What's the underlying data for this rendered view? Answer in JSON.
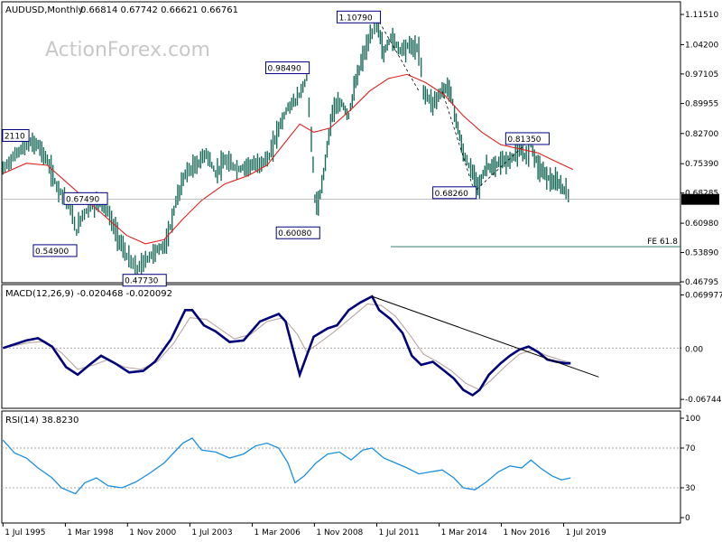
{
  "watermark": "ActionForex.com",
  "chart_data": [
    {
      "type": "ohlc",
      "title": "AUDUSD,Monthly",
      "ohlc_readout": "0.66814 0.67742 0.66621 0.66761",
      "y_ticks": [
        "1.11510",
        "1.04200",
        "0.97105",
        "0.89955",
        "0.82700",
        "0.75390",
        "0.68285",
        "0.60980",
        "0.53890",
        "0.46795"
      ],
      "ylim": [
        0.46795,
        1.1151
      ],
      "last_price": "0.66761",
      "price_path": [
        [
          1995.5,
          0.74
        ],
        [
          1996.1,
          0.78
        ],
        [
          1996.6,
          0.805
        ],
        [
          1997.0,
          0.8
        ],
        [
          1997.4,
          0.76
        ],
        [
          1997.8,
          0.7
        ],
        [
          1998.3,
          0.66
        ],
        [
          1998.65,
          0.59
        ],
        [
          1998.9,
          0.63
        ],
        [
          1999.5,
          0.66
        ],
        [
          1999.9,
          0.65
        ],
        [
          2000.4,
          0.58
        ],
        [
          2000.8,
          0.53
        ],
        [
          2001.25,
          0.497
        ],
        [
          2001.6,
          0.52
        ],
        [
          2002.1,
          0.545
        ],
        [
          2002.5,
          0.56
        ],
        [
          2002.9,
          0.66
        ],
        [
          2003.3,
          0.73
        ],
        [
          2003.8,
          0.75
        ],
        [
          2004.2,
          0.78
        ],
        [
          2004.6,
          0.73
        ],
        [
          2005.0,
          0.76
        ],
        [
          2005.6,
          0.74
        ],
        [
          2006.0,
          0.75
        ],
        [
          2006.4,
          0.75
        ],
        [
          2006.9,
          0.77
        ],
        [
          2007.3,
          0.84
        ],
        [
          2007.7,
          0.89
        ],
        [
          2008.1,
          0.91
        ],
        [
          2008.5,
          0.96
        ],
        [
          2008.7,
          0.82
        ],
        [
          2008.85,
          0.67
        ],
        [
          2009.0,
          0.65
        ],
        [
          2009.3,
          0.76
        ],
        [
          2009.6,
          0.88
        ],
        [
          2010.0,
          0.9
        ],
        [
          2010.3,
          0.87
        ],
        [
          2010.6,
          0.95
        ],
        [
          2010.9,
          1.01
        ],
        [
          2011.3,
          1.07
        ],
        [
          2011.5,
          1.1
        ],
        [
          2011.8,
          1.02
        ],
        [
          2012.1,
          1.06
        ],
        [
          2012.5,
          1.03
        ],
        [
          2012.9,
          1.04
        ],
        [
          2013.3,
          1.03
        ],
        [
          2013.5,
          0.93
        ],
        [
          2013.9,
          0.9
        ],
        [
          2014.3,
          0.93
        ],
        [
          2014.6,
          0.94
        ],
        [
          2014.9,
          0.86
        ],
        [
          2015.2,
          0.78
        ],
        [
          2015.6,
          0.73
        ],
        [
          2015.9,
          0.7
        ],
        [
          2016.2,
          0.75
        ],
        [
          2016.5,
          0.74
        ],
        [
          2016.8,
          0.76
        ],
        [
          2017.2,
          0.76
        ],
        [
          2017.6,
          0.79
        ],
        [
          2017.9,
          0.77
        ],
        [
          2018.1,
          0.8
        ],
        [
          2018.4,
          0.75
        ],
        [
          2018.7,
          0.73
        ],
        [
          2019.0,
          0.71
        ],
        [
          2019.3,
          0.705
        ],
        [
          2019.6,
          0.685
        ],
        [
          2019.8,
          0.675
        ]
      ],
      "moving_average": [
        [
          1995.5,
          0.73
        ],
        [
          1996.5,
          0.755
        ],
        [
          1997.4,
          0.75
        ],
        [
          1998.2,
          0.71
        ],
        [
          1999.0,
          0.67
        ],
        [
          2000.0,
          0.62
        ],
        [
          2000.8,
          0.58
        ],
        [
          2001.6,
          0.56
        ],
        [
          2002.4,
          0.57
        ],
        [
          2003.2,
          0.62
        ],
        [
          2004.0,
          0.665
        ],
        [
          2005.0,
          0.705
        ],
        [
          2006.0,
          0.725
        ],
        [
          2006.8,
          0.75
        ],
        [
          2007.5,
          0.8
        ],
        [
          2008.2,
          0.85
        ],
        [
          2008.8,
          0.83
        ],
        [
          2009.5,
          0.84
        ],
        [
          2010.4,
          0.885
        ],
        [
          2011.2,
          0.93
        ],
        [
          2012.0,
          0.96
        ],
        [
          2012.8,
          0.97
        ],
        [
          2013.6,
          0.95
        ],
        [
          2014.4,
          0.92
        ],
        [
          2015.2,
          0.87
        ],
        [
          2016.0,
          0.83
        ],
        [
          2016.8,
          0.8
        ],
        [
          2017.6,
          0.79
        ],
        [
          2018.4,
          0.78
        ],
        [
          2019.2,
          0.758
        ],
        [
          2019.9,
          0.74
        ]
      ],
      "level_labels": [
        {
          "text": "1.10790",
          "x": 2011.5,
          "y": 1.1079
        },
        {
          "text": "0.98490",
          "x": 2008.45,
          "y": 0.9849
        },
        {
          "text": "0.81350",
          "x": 2018.1,
          "y": 0.8135
        },
        {
          "text": "0.68260",
          "x": 2015.6,
          "y": 0.6826
        },
        {
          "text": "0.60080",
          "x": 2008.9,
          "y": 0.6008
        },
        {
          "text": "0.67490",
          "x": 1998.5,
          "y": 0.6749
        },
        {
          "text": "0.54900",
          "x": 1998.5,
          "y": 0.549
        },
        {
          "text": "0.47730",
          "x": 2001.25,
          "y": 0.4773
        },
        {
          "text": "2110",
          "x": 1995.6,
          "y": 0.8211
        }
      ],
      "fe_label": "FE 61.8",
      "fe_level": 0.553
    },
    {
      "type": "line",
      "title": "MACD(12,26,9) -0.020468 -0.020092",
      "y_ticks": [
        "0.069977",
        "0.00",
        "-0.067448"
      ],
      "ylim": [
        -0.078,
        0.08
      ],
      "zero_label": "0.00",
      "macd": [
        [
          1995.5,
          0.0
        ],
        [
          1996.5,
          0.01
        ],
        [
          1997.0,
          0.013
        ],
        [
          1997.6,
          0.002
        ],
        [
          1998.2,
          -0.025
        ],
        [
          1998.7,
          -0.035
        ],
        [
          1999.2,
          -0.022
        ],
        [
          1999.7,
          -0.01
        ],
        [
          2000.3,
          -0.02
        ],
        [
          2000.9,
          -0.032
        ],
        [
          2001.5,
          -0.03
        ],
        [
          2002.0,
          -0.018
        ],
        [
          2002.7,
          0.012
        ],
        [
          2003.3,
          0.05
        ],
        [
          2003.6,
          0.05
        ],
        [
          2004.1,
          0.03
        ],
        [
          2004.6,
          0.022
        ],
        [
          2005.2,
          0.008
        ],
        [
          2005.8,
          0.01
        ],
        [
          2006.5,
          0.035
        ],
        [
          2006.9,
          0.04
        ],
        [
          2007.3,
          0.045
        ],
        [
          2007.6,
          0.035
        ],
        [
          2008.0,
          -0.012
        ],
        [
          2008.2,
          -0.035
        ],
        [
          2008.5,
          -0.01
        ],
        [
          2008.8,
          0.015
        ],
        [
          2009.4,
          0.026
        ],
        [
          2009.8,
          0.03
        ],
        [
          2010.3,
          0.05
        ],
        [
          2010.8,
          0.06
        ],
        [
          2011.3,
          0.068
        ],
        [
          2011.6,
          0.05
        ],
        [
          2012.1,
          0.038
        ],
        [
          2012.6,
          0.02
        ],
        [
          2013.0,
          -0.01
        ],
        [
          2013.4,
          -0.022
        ],
        [
          2013.9,
          -0.018
        ],
        [
          2014.4,
          -0.03
        ],
        [
          2014.8,
          -0.04
        ],
        [
          2015.2,
          -0.055
        ],
        [
          2015.6,
          -0.062
        ],
        [
          2015.9,
          -0.055
        ],
        [
          2016.3,
          -0.035
        ],
        [
          2016.8,
          -0.02
        ],
        [
          2017.2,
          -0.01
        ],
        [
          2017.6,
          -0.002
        ],
        [
          2018.0,
          0.002
        ],
        [
          2018.4,
          -0.005
        ],
        [
          2018.8,
          -0.015
        ],
        [
          2019.2,
          -0.018
        ],
        [
          2019.6,
          -0.02
        ],
        [
          2019.8,
          -0.02
        ]
      ],
      "signal": [
        [
          1995.5,
          0.0
        ],
        [
          1996.6,
          0.007
        ],
        [
          1997.3,
          0.009
        ],
        [
          1998.0,
          -0.006
        ],
        [
          1998.7,
          -0.028
        ],
        [
          1999.4,
          -0.022
        ],
        [
          2000.0,
          -0.015
        ],
        [
          2000.7,
          -0.025
        ],
        [
          2001.4,
          -0.028
        ],
        [
          2002.1,
          -0.018
        ],
        [
          2002.8,
          0.006
        ],
        [
          2003.5,
          0.04
        ],
        [
          2004.2,
          0.038
        ],
        [
          2004.8,
          0.025
        ],
        [
          2005.4,
          0.012
        ],
        [
          2006.1,
          0.018
        ],
        [
          2006.8,
          0.035
        ],
        [
          2007.5,
          0.04
        ],
        [
          2008.1,
          0.018
        ],
        [
          2008.5,
          -0.005
        ],
        [
          2009.0,
          0.006
        ],
        [
          2009.7,
          0.022
        ],
        [
          2010.4,
          0.04
        ],
        [
          2011.1,
          0.058
        ],
        [
          2011.7,
          0.056
        ],
        [
          2012.3,
          0.042
        ],
        [
          2012.9,
          0.018
        ],
        [
          2013.5,
          -0.008
        ],
        [
          2014.1,
          -0.018
        ],
        [
          2014.7,
          -0.03
        ],
        [
          2015.3,
          -0.046
        ],
        [
          2015.9,
          -0.055
        ],
        [
          2016.4,
          -0.042
        ],
        [
          2017.0,
          -0.024
        ],
        [
          2017.6,
          -0.008
        ],
        [
          2018.2,
          -0.002
        ],
        [
          2018.8,
          -0.01
        ],
        [
          2019.4,
          -0.016
        ],
        [
          2019.8,
          -0.019
        ]
      ],
      "trendline": [
        [
          2011.3,
          0.068
        ],
        [
          2021.0,
          -0.038
        ]
      ]
    },
    {
      "type": "line",
      "title": "RSI(14) 38.8230",
      "y_ticks": [
        "100",
        "70",
        "30",
        "0"
      ],
      "levels": [
        70,
        30
      ],
      "ylim": [
        0,
        100
      ],
      "rsi": [
        [
          1995.5,
          78
        ],
        [
          1996.0,
          65
        ],
        [
          1996.5,
          60
        ],
        [
          1997.0,
          50
        ],
        [
          1997.6,
          40
        ],
        [
          1998.0,
          30
        ],
        [
          1998.6,
          24
        ],
        [
          1999.0,
          35
        ],
        [
          1999.5,
          40
        ],
        [
          2000.0,
          32
        ],
        [
          2000.6,
          30
        ],
        [
          2001.2,
          36
        ],
        [
          2001.8,
          45
        ],
        [
          2002.4,
          55
        ],
        [
          2002.8,
          65
        ],
        [
          2003.2,
          75
        ],
        [
          2003.6,
          80
        ],
        [
          2004.0,
          68
        ],
        [
          2004.6,
          66
        ],
        [
          2005.2,
          60
        ],
        [
          2005.8,
          64
        ],
        [
          2006.3,
          72
        ],
        [
          2006.8,
          75
        ],
        [
          2007.3,
          70
        ],
        [
          2007.7,
          55
        ],
        [
          2008.0,
          35
        ],
        [
          2008.4,
          42
        ],
        [
          2008.9,
          55
        ],
        [
          2009.4,
          64
        ],
        [
          2009.9,
          66
        ],
        [
          2010.4,
          58
        ],
        [
          2010.9,
          68
        ],
        [
          2011.3,
          70
        ],
        [
          2011.8,
          60
        ],
        [
          2012.2,
          56
        ],
        [
          2012.8,
          50
        ],
        [
          2013.3,
          44
        ],
        [
          2013.8,
          46
        ],
        [
          2014.3,
          48
        ],
        [
          2014.8,
          40
        ],
        [
          2015.2,
          30
        ],
        [
          2015.7,
          28
        ],
        [
          2016.2,
          36
        ],
        [
          2016.7,
          46
        ],
        [
          2017.2,
          52
        ],
        [
          2017.7,
          50
        ],
        [
          2018.1,
          58
        ],
        [
          2018.5,
          50
        ],
        [
          2019.0,
          42
        ],
        [
          2019.4,
          38
        ],
        [
          2019.8,
          40
        ]
      ]
    }
  ],
  "x_axis": {
    "xlim": [
      1995.45,
      2024.5
    ],
    "ticks": [
      {
        "label": "1 Jul 1995",
        "x": 1995.5
      },
      {
        "label": "1 Mar 1998",
        "x": 1998.17
      },
      {
        "label": "1 Nov 2000",
        "x": 2000.83
      },
      {
        "label": "1 Jul 2003",
        "x": 2003.5
      },
      {
        "label": "1 Mar 2006",
        "x": 2006.17
      },
      {
        "label": "1 Nov 2008",
        "x": 2008.83
      },
      {
        "label": "1 Jul 2011",
        "x": 2011.5
      },
      {
        "label": "1 Mar 2014",
        "x": 2014.17
      },
      {
        "label": "1 Nov 2016",
        "x": 2016.83
      },
      {
        "label": "1 Jul 2019",
        "x": 2019.5
      }
    ]
  },
  "colors": {
    "price": "#1a6b5a",
    "moving_average": "#e02020",
    "macd": "#00007a",
    "signal": "#b8a7a0",
    "rsi": "#1a8fe0",
    "label_border": "#000080",
    "grid": "#000000"
  }
}
